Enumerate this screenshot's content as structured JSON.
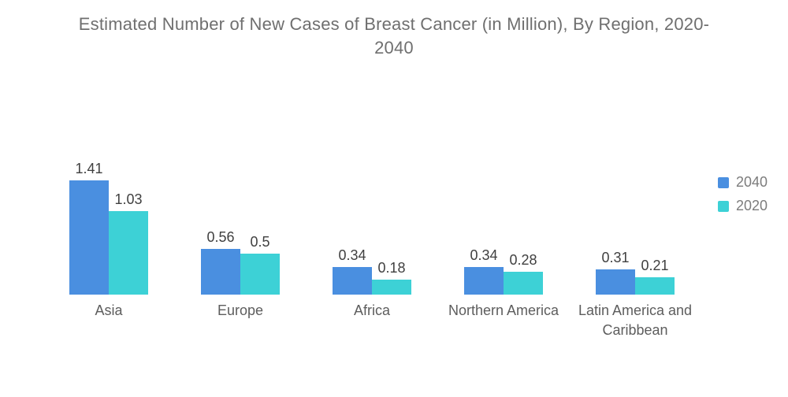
{
  "title": "Estimated Number of New Cases of Breast Cancer (in Million), By Region, 2020-2040",
  "colors": {
    "series_2040": "#4a8fe0",
    "series_2020": "#3dd1d6",
    "title_text": "#6f6f6f",
    "value_label_text": "#404040",
    "category_label_text": "#5d5d5d",
    "legend_text": "#7c7c7c",
    "background": "#ffffff"
  },
  "legend": {
    "position": "right",
    "items": [
      {
        "label": "2040",
        "color": "#4a8fe0"
      },
      {
        "label": "2020",
        "color": "#3dd1d6"
      }
    ]
  },
  "chart_data": {
    "type": "bar",
    "title": "Estimated Number of New Cases of Breast Cancer (in Million), By Region, 2020-2040",
    "categories": [
      "Asia",
      "Europe",
      "Africa",
      "Northern America",
      "Latin America and Caribbean"
    ],
    "series": [
      {
        "name": "2040",
        "color": "#4a8fe0",
        "values": [
          1.41,
          0.56,
          0.34,
          0.34,
          0.31
        ]
      },
      {
        "name": "2020",
        "color": "#3dd1d6",
        "values": [
          1.03,
          0.5,
          0.18,
          0.28,
          0.21
        ]
      }
    ],
    "xlabel": "",
    "ylabel": "",
    "ylim": [
      0,
      1.5
    ],
    "grid": false,
    "axes_visible": false,
    "value_labels_visible": true,
    "legend_position": "right"
  }
}
